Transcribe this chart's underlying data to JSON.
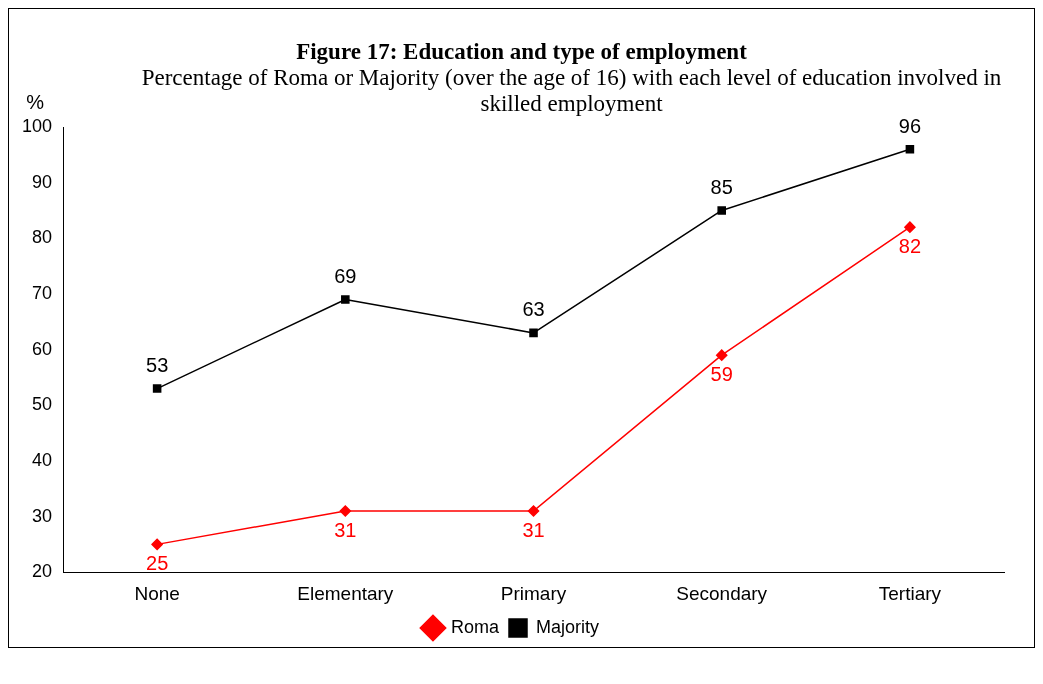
{
  "chart_data": {
    "type": "line",
    "title": "Figure 17: Education and type of employment",
    "subtitle": "Percentage of Roma or Majority (over the age of 16) with each level of education involved in skilled employment",
    "ylabel": "%",
    "categories": [
      "None",
      "Elementary",
      "Primary",
      "Secondary",
      "Tertiary"
    ],
    "series": [
      {
        "name": "Roma",
        "color": "#ff0000",
        "marker": "diamond",
        "values": [
          25,
          31,
          31,
          59,
          82
        ]
      },
      {
        "name": "Majority",
        "color": "#000000",
        "marker": "square",
        "values": [
          53,
          69,
          63,
          85,
          96
        ]
      }
    ],
    "ylim": [
      20,
      100
    ],
    "yticks": [
      20,
      30,
      40,
      50,
      60,
      70,
      80,
      90,
      100
    ],
    "grid": false,
    "legend": "bottom",
    "data_labels": true
  }
}
